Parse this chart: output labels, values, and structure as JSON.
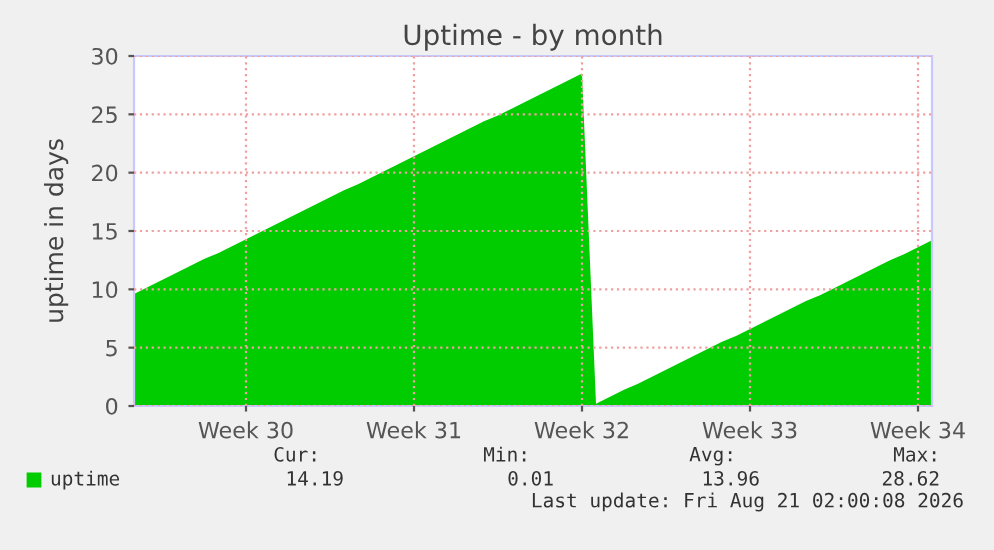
{
  "chart_data": {
    "type": "area",
    "title": "Uptime - by month",
    "ylabel": "uptime in days",
    "categories": [
      null,
      null,
      null,
      null,
      null,
      null,
      null,
      null,
      "Week 30",
      null,
      null,
      null,
      null,
      null,
      null,
      null,
      null,
      null,
      null,
      null,
      "Week 31",
      null,
      null,
      null,
      null,
      null,
      null,
      null,
      null,
      null,
      null,
      null,
      "Week 32",
      null,
      null,
      null,
      null,
      null,
      null,
      null,
      null,
      null,
      null,
      null,
      "Week 33",
      null,
      null,
      null,
      null,
      null,
      null,
      null,
      null,
      null,
      null,
      null,
      "Week 34",
      null
    ],
    "series": [
      {
        "name": "uptime",
        "color": "#00cc00",
        "values": [
          9.6,
          10.2,
          10.8,
          11.4,
          12.0,
          12.6,
          13.1,
          13.7,
          14.3,
          14.9,
          15.5,
          16.1,
          16.7,
          17.3,
          17.9,
          18.5,
          19.0,
          19.6,
          20.2,
          20.8,
          21.4,
          22.0,
          22.6,
          23.2,
          23.8,
          24.4,
          24.9,
          25.5,
          26.1,
          26.7,
          27.3,
          27.9,
          28.5,
          0.2,
          0.8,
          1.4,
          1.9,
          2.5,
          3.1,
          3.7,
          4.3,
          4.9,
          5.5,
          6.0,
          6.6,
          7.2,
          7.8,
          8.4,
          9.0,
          9.5,
          10.1,
          10.7,
          11.3,
          11.9,
          12.5,
          13.0,
          13.6,
          14.2
        ]
      }
    ],
    "ylim": [
      0,
      30
    ],
    "yticks": [
      0,
      5,
      10,
      15,
      20,
      25,
      30
    ],
    "grid": true,
    "legend": "bottom left",
    "annotations": [
      "Cur:",
      "Min:",
      "Avg:",
      "Max:",
      "14.19",
      "0.01",
      "13.96",
      "28.62",
      "Last update: Fri Aug 21 02:00:08 2026"
    ]
  }
}
